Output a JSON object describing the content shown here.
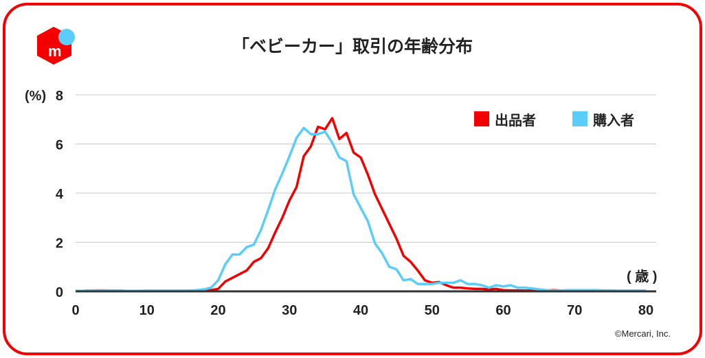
{
  "chart_data": {
    "type": "line",
    "title": "「ベビーカー」取引の年齢分布",
    "ylabel": "(%)",
    "xlabel": "( 歳 )",
    "xlim": [
      0,
      80
    ],
    "ylim": [
      0,
      8
    ],
    "xticks": [
      "0",
      "10",
      "20",
      "30",
      "40",
      "50",
      "60",
      "70",
      "80"
    ],
    "yticks": [
      "0",
      "2",
      "4",
      "6",
      "8"
    ],
    "grid": true,
    "legend_position": "top-right",
    "series": [
      {
        "name": "出品者",
        "color": "#f40000",
        "values": [
          0.02,
          0.02,
          0.03,
          0.04,
          0.04,
          0.03,
          0.03,
          0.02,
          0.02,
          0.02,
          0.02,
          0.02,
          0.02,
          0.02,
          0.02,
          0.02,
          0.02,
          0.02,
          0.03,
          0.05,
          0.1,
          0.4,
          0.55,
          0.7,
          0.85,
          1.2,
          1.35,
          1.75,
          2.4,
          3.0,
          3.7,
          4.25,
          5.5,
          5.9,
          6.7,
          6.6,
          7.05,
          6.2,
          6.45,
          5.65,
          5.45,
          4.75,
          3.95,
          3.35,
          2.75,
          2.15,
          1.45,
          1.2,
          0.85,
          0.45,
          0.35,
          0.38,
          0.25,
          0.15,
          0.15,
          0.12,
          0.1,
          0.1,
          0.08,
          0.1,
          0.05,
          0.04,
          0.04,
          0.03,
          0.03,
          0.03,
          0.03,
          0.05,
          0.03,
          0.03,
          0.03,
          0.03,
          0.03,
          0.02,
          0.02,
          0.02,
          0.02,
          0.02,
          0.02,
          0.02,
          0.02
        ]
      },
      {
        "name": "購入者",
        "color": "#5bcdfb",
        "values": [
          0.02,
          0.02,
          0.03,
          0.03,
          0.03,
          0.03,
          0.03,
          0.02,
          0.02,
          0.02,
          0.03,
          0.03,
          0.03,
          0.03,
          0.03,
          0.03,
          0.03,
          0.05,
          0.08,
          0.15,
          0.45,
          1.1,
          1.5,
          1.5,
          1.8,
          1.9,
          2.5,
          3.3,
          4.15,
          4.8,
          5.5,
          6.25,
          6.65,
          6.4,
          6.4,
          6.5,
          6.05,
          5.45,
          5.3,
          3.95,
          3.4,
          2.85,
          1.95,
          1.55,
          1.0,
          0.9,
          0.45,
          0.5,
          0.3,
          0.3,
          0.3,
          0.35,
          0.35,
          0.35,
          0.45,
          0.3,
          0.3,
          0.25,
          0.15,
          0.25,
          0.2,
          0.25,
          0.15,
          0.15,
          0.12,
          0.08,
          0.05,
          0.03,
          0.03,
          0.05,
          0.05,
          0.05,
          0.05,
          0.05,
          0.04,
          0.04,
          0.03,
          0.03,
          0.03,
          0.03,
          0.03
        ]
      }
    ]
  },
  "copyright": "©Mercari, Inc.",
  "logo_text": "m"
}
